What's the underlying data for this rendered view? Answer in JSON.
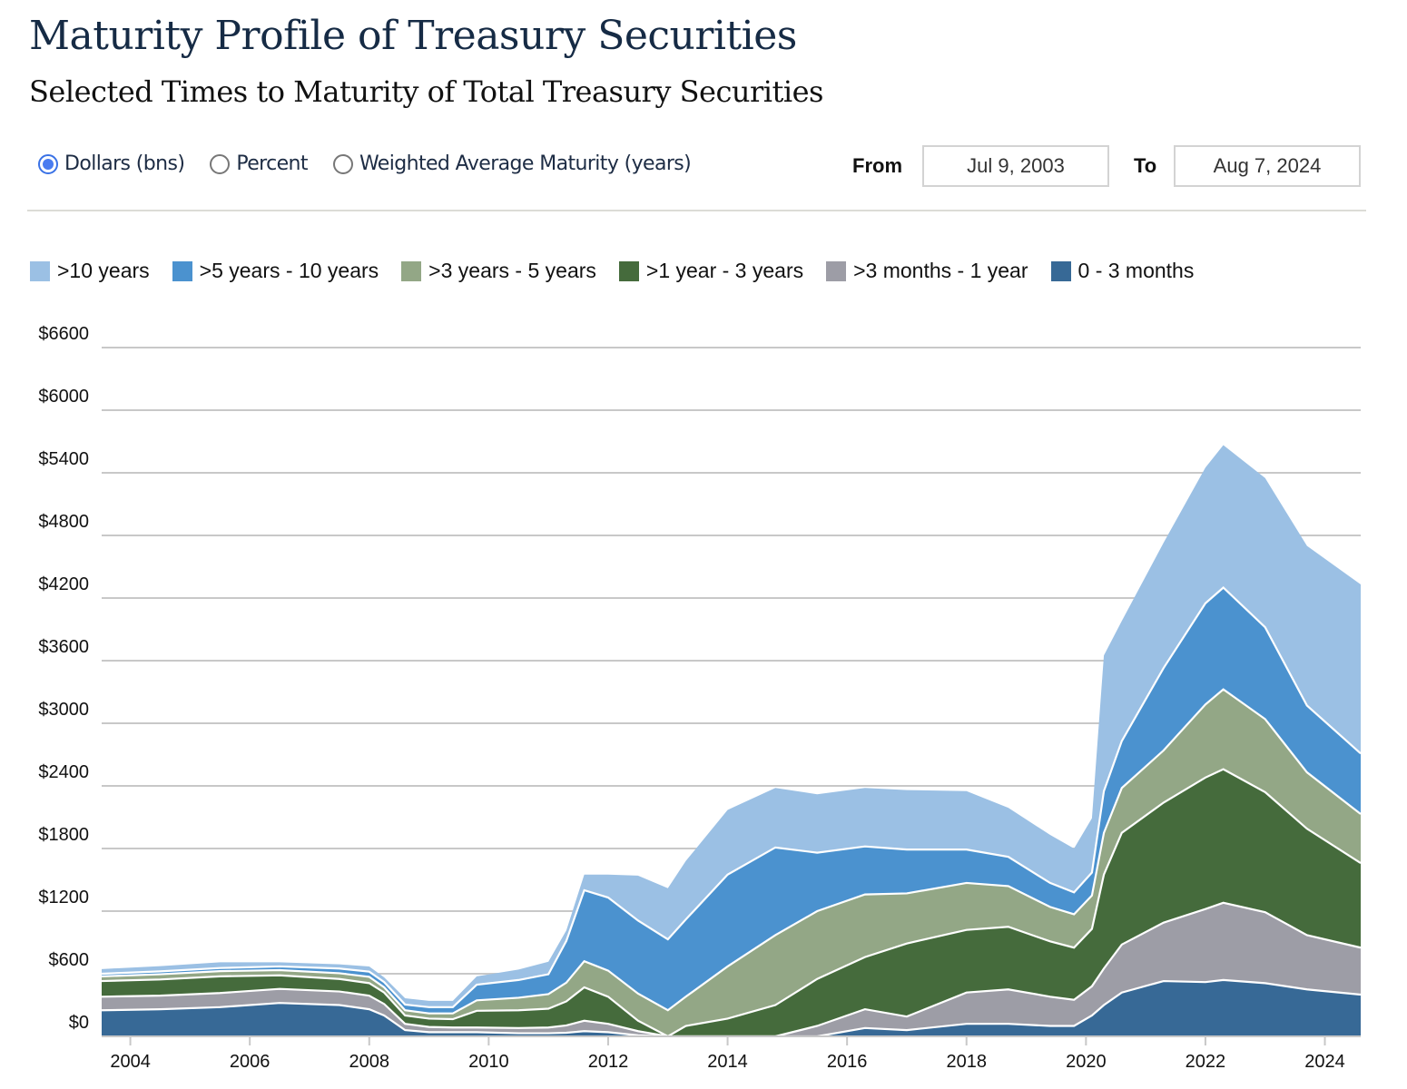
{
  "header": {
    "title": "Maturity Profile of Treasury Securities",
    "subtitle": "Selected Times to Maturity of Total Treasury Securities"
  },
  "controls": {
    "views": [
      {
        "label": "Dollars (bns)",
        "selected": true
      },
      {
        "label": "Percent",
        "selected": false
      },
      {
        "label": "Weighted Average Maturity (years)",
        "selected": false
      }
    ],
    "from_label": "From",
    "from_value": "Jul 9, 2003",
    "to_label": "To",
    "to_value": "Aug 7, 2024"
  },
  "chart_data": {
    "type": "area",
    "stacked": true,
    "title": "Selected Times to Maturity of Total Treasury Securities",
    "xlabel": "",
    "ylabel": "Dollars (bns)",
    "ylim": [
      0,
      6600
    ],
    "xlim": [
      2003.52,
      2024.6
    ],
    "y_ticks": [
      0,
      600,
      1200,
      1800,
      2400,
      3000,
      3600,
      4200,
      4800,
      5400,
      6000,
      6600
    ],
    "y_tick_labels": [
      "$0",
      "$600",
      "$1200",
      "$1800",
      "$2400",
      "$3000",
      "$3600",
      "$4200",
      "$4800",
      "$5400",
      "$6000",
      "$6600"
    ],
    "x_ticks": [
      2004,
      2006,
      2008,
      2010,
      2012,
      2014,
      2016,
      2018,
      2020,
      2022,
      2024
    ],
    "x_tick_labels": [
      "2004",
      "2006",
      "2008",
      "2010",
      "2012",
      "2014",
      "2016",
      "2018",
      "2020",
      "2022",
      "2024"
    ],
    "grid": true,
    "legend_position": "top",
    "x": [
      2003.52,
      2004.5,
      2005.5,
      2006.5,
      2007.5,
      2008.0,
      2008.25,
      2008.6,
      2009.0,
      2009.4,
      2009.8,
      2010.5,
      2011.0,
      2011.3,
      2011.6,
      2012.0,
      2012.5,
      2013.0,
      2013.3,
      2014.0,
      2014.8,
      2015.5,
      2016.3,
      2017.0,
      2018.0,
      2018.7,
      2019.4,
      2019.8,
      2020.1,
      2020.3,
      2020.6,
      2021.3,
      2022.0,
      2022.3,
      2023.0,
      2023.7,
      2024.6
    ],
    "series": [
      {
        "name": "0 - 3 months",
        "color": "#376996",
        "values": [
          250,
          260,
          280,
          320,
          300,
          260,
          200,
          60,
          40,
          40,
          40,
          30,
          30,
          35,
          50,
          40,
          10,
          0,
          0,
          0,
          0,
          0,
          80,
          60,
          120,
          120,
          100,
          100,
          200,
          300,
          420,
          530,
          520,
          540,
          510,
          450,
          400
        ]
      },
      {
        "name": ">3 months - 1 year",
        "color": "#9d9da6",
        "values": [
          130,
          130,
          135,
          135,
          130,
          130,
          110,
          60,
          50,
          45,
          45,
          50,
          55,
          70,
          100,
          80,
          40,
          0,
          0,
          0,
          0,
          100,
          180,
          130,
          300,
          330,
          280,
          250,
          280,
          350,
          460,
          560,
          700,
          740,
          680,
          520,
          450
        ]
      },
      {
        "name": ">1 year - 3 years",
        "color": "#456b3c",
        "values": [
          150,
          155,
          160,
          130,
          120,
          120,
          110,
          80,
          80,
          80,
          160,
          170,
          180,
          230,
          320,
          260,
          100,
          0,
          100,
          170,
          300,
          450,
          500,
          700,
          600,
          600,
          530,
          500,
          550,
          900,
          1070,
          1150,
          1260,
          1280,
          1150,
          1020,
          810
        ]
      },
      {
        "name": ">3 years - 5 years",
        "color": "#93a786",
        "values": [
          45,
          50,
          50,
          50,
          55,
          60,
          50,
          50,
          50,
          55,
          100,
          120,
          140,
          180,
          250,
          250,
          260,
          250,
          280,
          500,
          670,
          650,
          600,
          480,
          450,
          390,
          330,
          320,
          320,
          400,
          430,
          500,
          700,
          765,
          700,
          540,
          470
        ]
      },
      {
        "name": ">5 years - 10 years",
        "color": "#4b92cf",
        "values": [
          25,
          28,
          30,
          35,
          45,
          50,
          50,
          55,
          60,
          60,
          150,
          170,
          190,
          400,
          680,
          700,
          700,
          680,
          740,
          880,
          840,
          560,
          460,
          420,
          320,
          280,
          230,
          210,
          220,
          400,
          450,
          790,
          970,
          975,
          880,
          640,
          580
        ]
      },
      {
        "name": ">10 years",
        "color": "#9bc0e4",
        "values": [
          45,
          50,
          55,
          40,
          40,
          50,
          45,
          60,
          60,
          60,
          80,
          100,
          120,
          100,
          150,
          220,
          430,
          490,
          560,
          620,
          570,
          560,
          560,
          570,
          560,
          470,
          460,
          420,
          520,
          1300,
          1150,
          1200,
          1300,
          1365,
          1430,
          1530,
          1620
        ]
      }
    ]
  }
}
